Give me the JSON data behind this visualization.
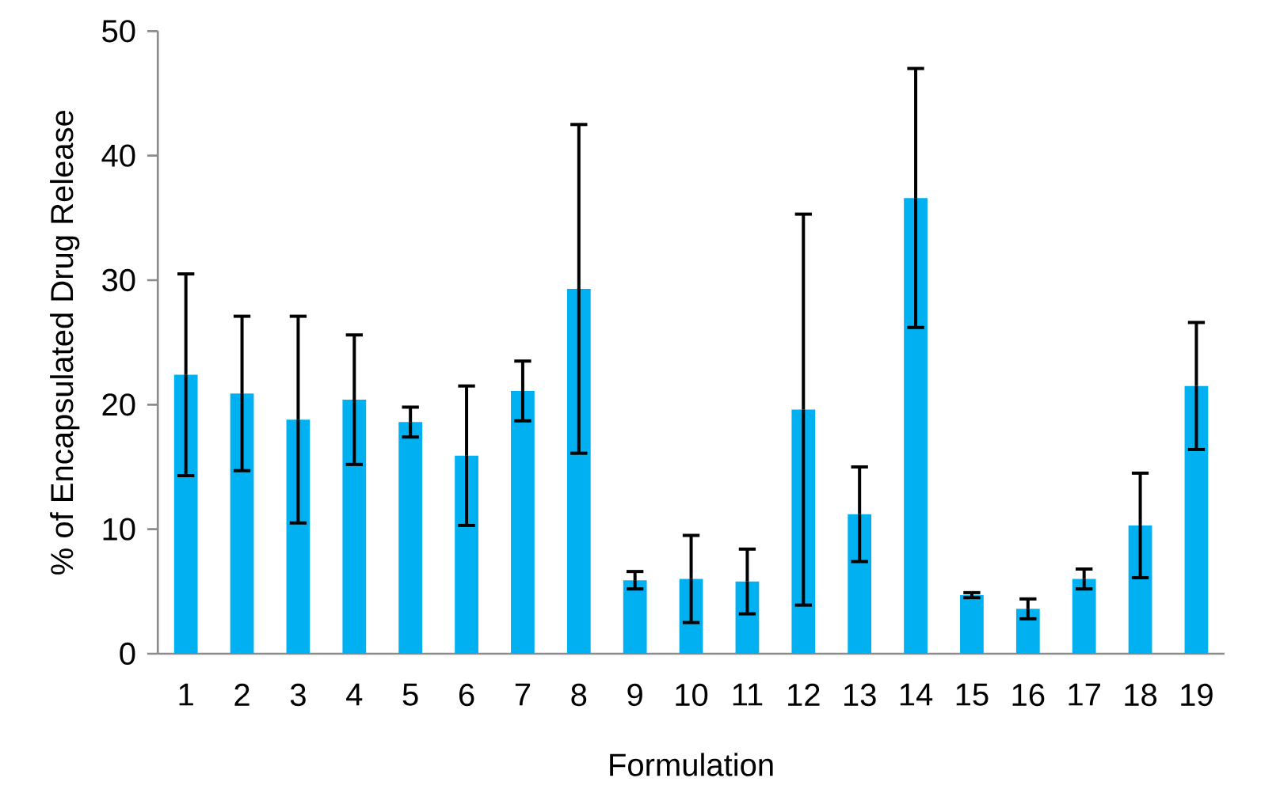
{
  "chart_data": {
    "type": "bar",
    "xlabel": "Formulation",
    "ylabel": "% of Encapsulated Drug Release",
    "categories": [
      "1",
      "2",
      "3",
      "4",
      "5",
      "6",
      "7",
      "8",
      "9",
      "10",
      "11",
      "12",
      "13",
      "14",
      "15",
      "16",
      "17",
      "18",
      "19"
    ],
    "values": [
      22.4,
      20.9,
      18.8,
      20.4,
      18.6,
      15.9,
      21.1,
      29.3,
      5.9,
      6.0,
      5.8,
      19.6,
      11.2,
      36.6,
      4.7,
      3.6,
      6.0,
      10.3,
      21.5
    ],
    "errors": [
      8.1,
      6.2,
      8.3,
      5.2,
      1.2,
      5.6,
      2.4,
      13.2,
      0.7,
      3.5,
      2.6,
      15.7,
      3.8,
      10.4,
      0.2,
      0.8,
      0.8,
      4.2,
      5.1
    ],
    "color": "#00b0f0",
    "ylim": [
      0,
      50
    ],
    "yticks": [
      0,
      10,
      20,
      30,
      40,
      50
    ],
    "grid": false
  }
}
